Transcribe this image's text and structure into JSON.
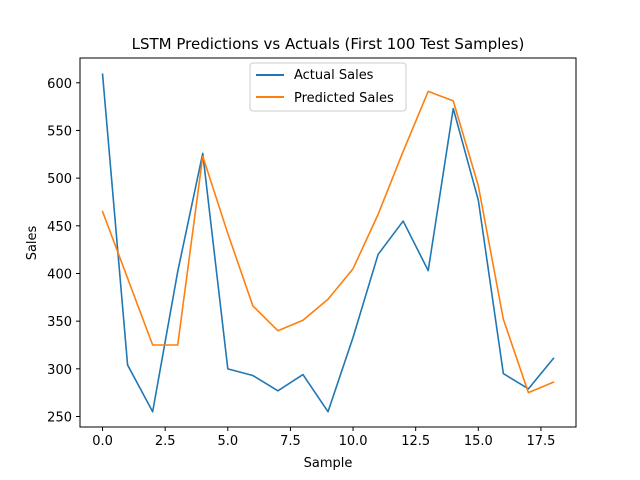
{
  "chart_data": {
    "type": "line",
    "title": "LSTM Predictions vs Actuals (First 100 Test Samples)",
    "xlabel": "Sample",
    "ylabel": "Sales",
    "xlim": [
      -0.9,
      18.9
    ],
    "ylim": [
      239,
      626
    ],
    "x_ticks": [
      0,
      2.5,
      5,
      7.5,
      10,
      12.5,
      15,
      17.5
    ],
    "x_tick_labels": [
      "0.0",
      "2.5",
      "5.0",
      "7.5",
      "10.0",
      "12.5",
      "15.0",
      "17.5"
    ],
    "y_ticks": [
      250,
      300,
      350,
      400,
      450,
      500,
      550,
      600
    ],
    "y_tick_labels": [
      "250",
      "300",
      "350",
      "400",
      "450",
      "500",
      "550",
      "600"
    ],
    "grid": false,
    "legend_position": "top-center",
    "x": [
      0,
      1,
      2,
      3,
      4,
      5,
      6,
      7,
      8,
      9,
      10,
      11,
      12,
      13,
      14,
      15,
      16,
      17,
      18
    ],
    "series": [
      {
        "name": "Actual Sales",
        "color": "#1f77b4",
        "values": [
          609,
          304,
          255,
          402,
          526,
          300,
          293,
          277,
          294,
          255,
          333,
          420,
          455,
          403,
          573,
          477,
          295,
          279,
          311
        ]
      },
      {
        "name": "Predicted Sales",
        "color": "#ff7f0e",
        "values": [
          465,
          395,
          325,
          325,
          523,
          442,
          366,
          340,
          351,
          373,
          405,
          462,
          528,
          591,
          581,
          492,
          352,
          275,
          286
        ]
      }
    ]
  }
}
